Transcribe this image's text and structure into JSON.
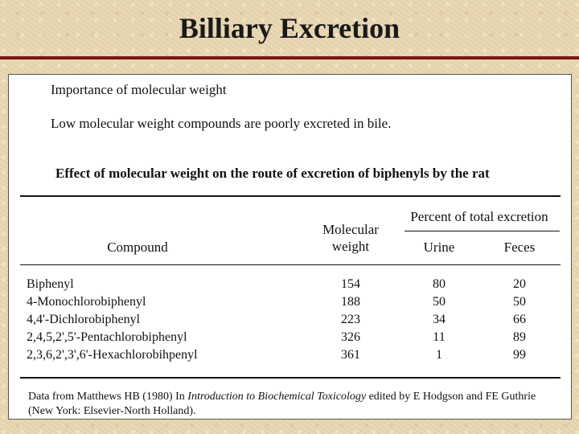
{
  "slide": {
    "title": "Billiary Excretion"
  },
  "intro": {
    "heading": "Importance of molecular weight",
    "body": "Low molecular weight compounds are poorly excreted in bile."
  },
  "table": {
    "caption": "Effect of molecular weight on the route of excretion of biphenyls by the rat",
    "headers": {
      "compound": "Compound",
      "mw_line1": "Molecular",
      "mw_line2": "weight",
      "percent_group": "Percent of total excretion",
      "urine": "Urine",
      "feces": "Feces"
    },
    "rows": [
      {
        "compound": "Biphenyl",
        "mw": "154",
        "urine": "80",
        "feces": "20"
      },
      {
        "compound": "4-Monochlorobiphenyl",
        "mw": "188",
        "urine": "50",
        "feces": "50"
      },
      {
        "compound": "4,4'-Dichlorobiphenyl",
        "mw": "223",
        "urine": "34",
        "feces": "66"
      },
      {
        "compound": "2,4,5,2',5'-Pentachlorobiphenyl",
        "mw": "326",
        "urine": "11",
        "feces": "89"
      },
      {
        "compound": "2,3,6,2',3',6'-Hexachlorobihpenyl",
        "mw": "361",
        "urine": "1",
        "feces": "99"
      }
    ]
  },
  "source": {
    "prefix": "Data from Matthews HB (1980) In ",
    "book": "Introduction to Biochemical Toxicology",
    "suffix": " edited by E Hodgson and FE Guthrie (New York:  Elsevier-North Holland)."
  }
}
